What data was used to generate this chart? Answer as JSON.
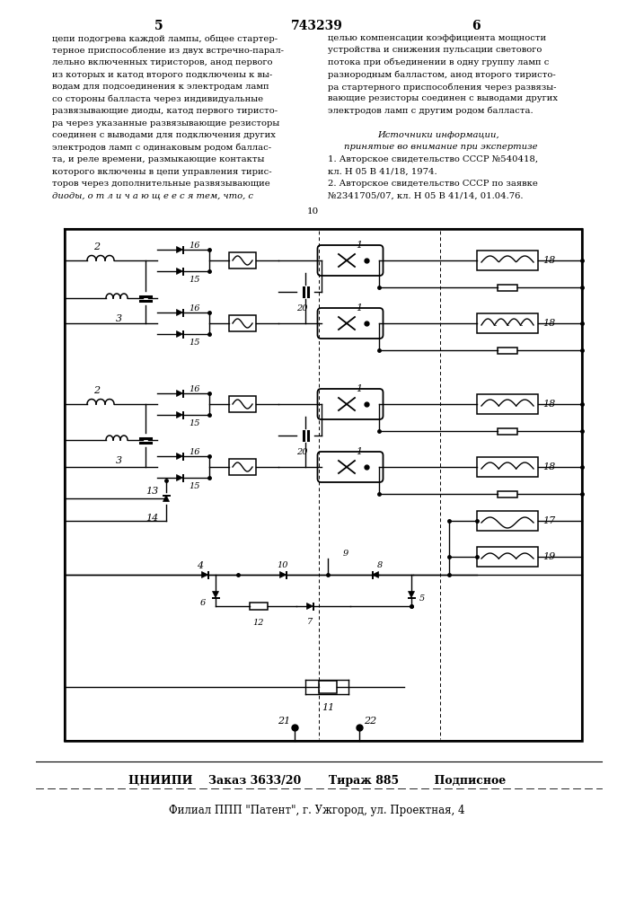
{
  "page_number_left": "5",
  "page_number_center": "743239",
  "page_number_right": "6",
  "left_col": [
    "цепи подогрева каждой лампы, общее стартер-",
    "терное приспособление из двух встречно-парал-",
    "лельно включенных тиристоров, анод первого",
    "из которых и катод второго подключены к вы-",
    "водам для подсоединения к электродам ламп",
    "со стороны балласта через индивидуальные",
    "развязывающие диоды, катод первого тиристо-",
    "ра через указанные развязывающие резисторы",
    "соединен с выводами для подключения других",
    "электродов ламп с одинаковым родом баллас-",
    "та, и реле времени, размыкающие контакты",
    "которого включены в цепи управления тирис-",
    "торов через дополнительные развязывающие",
    "диоды, о т л и ч а ю щ е е с я тем, что, с"
  ],
  "right_col": [
    "целью компенсации коэффициента мощности",
    "устройства и снижения пульсации светового",
    "потока при объединении в одну группу ламп с",
    "разнородным балластом, анод второго тиристо-",
    "ра стартерного приспособления через развязы-",
    "вающие резисторы соединен с выводами других",
    "электродов ламп с другим родом балласта.",
    "",
    "Источники информации,",
    "принятые во внимание при экспертизе",
    "1. Авторское свидетельство СССР №540418,",
    "кл. Н 05 В 41/18, 1974.",
    "2. Авторское свидетельство СССР по заявке",
    "№2341705/07, кл. Н 05 В 41/14, 01.04.76."
  ],
  "margin_10": "10",
  "footer1": "ЦНИИПИ    Заказ 3633/20       Тираж 885         Подписное",
  "footer2": "Филиал ППП \"Патент\", г. Ужгород, ул. Проектная, 4",
  "bg": "#f5f5f0"
}
